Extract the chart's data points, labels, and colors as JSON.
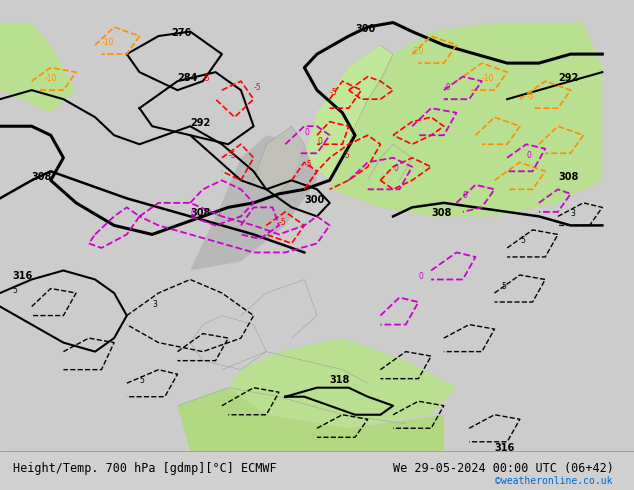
{
  "title_left": "Height/Temp. 700 hPa [gdmp][°C] ECMWF",
  "title_right": "We 29-05-2024 00:00 UTC (06+42)",
  "copyright": "©weatheronline.co.uk",
  "fig_width": 6.34,
  "fig_height": 4.9
}
